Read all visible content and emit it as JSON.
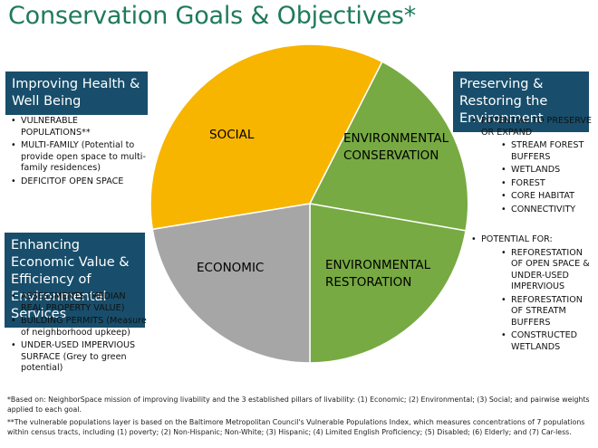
{
  "title": "Conservation Goals & Objectives*",
  "colors": {
    "title": "#1f7a5c",
    "box_bg": "#184e6b",
    "social": "#f7b500",
    "environmental": "#77aa42",
    "economic": "#a6a6a6"
  },
  "left_top": {
    "heading": "Improving Health & Well Being",
    "items": [
      "VULNERABLE POPULATIONS**",
      "MULTI-FAMILY (Potential to provide open space to multi-family residences)",
      "DEFICITOF OPEN SPACE"
    ]
  },
  "left_bottom": {
    "heading": "Enhancing Economic Value & Efficiency of Environmental Services",
    "items": [
      "ASSESSMENTS (MEDIAN REAL PROPERTY VALUE)",
      "BUILDING PERMITS (Measure of neighborhood upkeep)",
      "UNDER-USED IMPERVIOUS SURFACE (Grey to green potential)"
    ]
  },
  "right_top": {
    "heading": "Preserving & Restoring the Environment",
    "lead": "POTENTIAL TO PRESERVE OR EXPAND",
    "items": [
      "STREAM FOREST BUFFERS",
      "WETLANDS",
      "FOREST",
      "CORE HABITAT",
      "CONNECTIVITY"
    ]
  },
  "right_bottom": {
    "lead": "POTENTIAL FOR:",
    "items": [
      "REFORESTATION OF OPEN SPACE & UNDER-USED IMPERVIOUS",
      "REFORESTATION OF STREATM BUFFERS",
      "CONSTRUCTED WETLANDS"
    ]
  },
  "pie": {
    "social_label": "SOCIAL",
    "conservation_label_1": "ENVIRONMENTAL",
    "conservation_label_2": "CONSERVATION",
    "restoration_label_1": "ENVIRONMENTAL",
    "restoration_label_2": "RESTORATION",
    "economic_label": "ECONOMIC"
  },
  "footnotes": {
    "line1": "*Based on: NeighborSpace mission of improving livability and the 3 established pillars of livability: (1) Economic; (2) Environmental; (3) Social; and pairwise weights applied to each goal.",
    "line2": "**The vulnerable populations layer is based on the Baltimore Metropolitan Council's Vulnerable Populations Index, which measures concentrations of 7 populations within census tracts, including (1) poverty; (2) Non-Hispanic; Non-White; (3) Hispanic; (4) Limited English Proficiency; (5) Disabled; (6) Elderly; and (7) Car-less."
  }
}
